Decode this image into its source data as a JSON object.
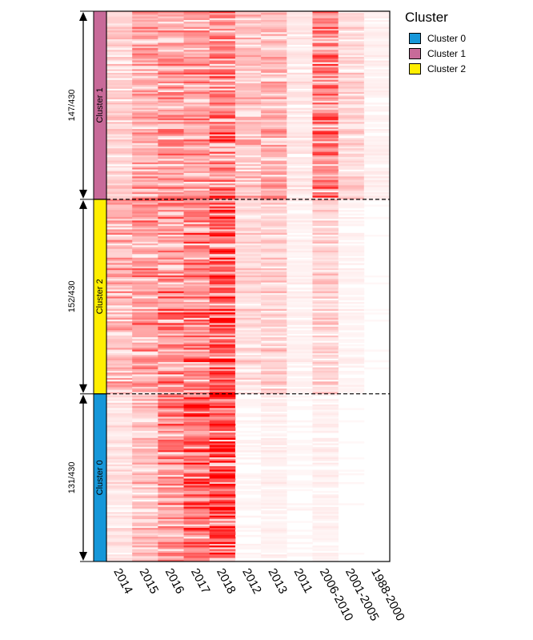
{
  "chart_data": {
    "type": "heatmap",
    "columns": [
      "2014",
      "2015",
      "2016",
      "2017",
      "2018",
      "2012",
      "2013",
      "2011",
      "2006-2010",
      "2001-2005",
      "1988-2000"
    ],
    "total": 430,
    "color_low": "#ffffff",
    "color_high": "#ff0000",
    "value_range": [
      0,
      1
    ],
    "clusters": [
      {
        "label": "Cluster 1",
        "count_label": "147/430",
        "count": 147,
        "color": "#c86a99",
        "column_mean_intensity": [
          0.18,
          0.34,
          0.38,
          0.4,
          0.55,
          0.26,
          0.3,
          0.1,
          0.5,
          0.16,
          0.06
        ]
      },
      {
        "label": "Cluster 2",
        "count_label": "152/430",
        "count": 152,
        "color": "#ffee00",
        "column_mean_intensity": [
          0.32,
          0.4,
          0.48,
          0.54,
          0.72,
          0.16,
          0.2,
          0.06,
          0.18,
          0.05,
          0.02
        ]
      },
      {
        "label": "Cluster 0",
        "count_label": "131/430",
        "count": 131,
        "color": "#1697d9",
        "column_mean_intensity": [
          0.12,
          0.26,
          0.44,
          0.62,
          0.86,
          0.04,
          0.06,
          0.03,
          0.06,
          0.02,
          0.01
        ]
      }
    ]
  },
  "legend": {
    "title": "Cluster",
    "items": [
      {
        "label": "Cluster 0",
        "color": "#1697d9"
      },
      {
        "label": "Cluster 1",
        "color": "#c86a99"
      },
      {
        "label": "Cluster 2",
        "color": "#ffee00"
      }
    ]
  }
}
